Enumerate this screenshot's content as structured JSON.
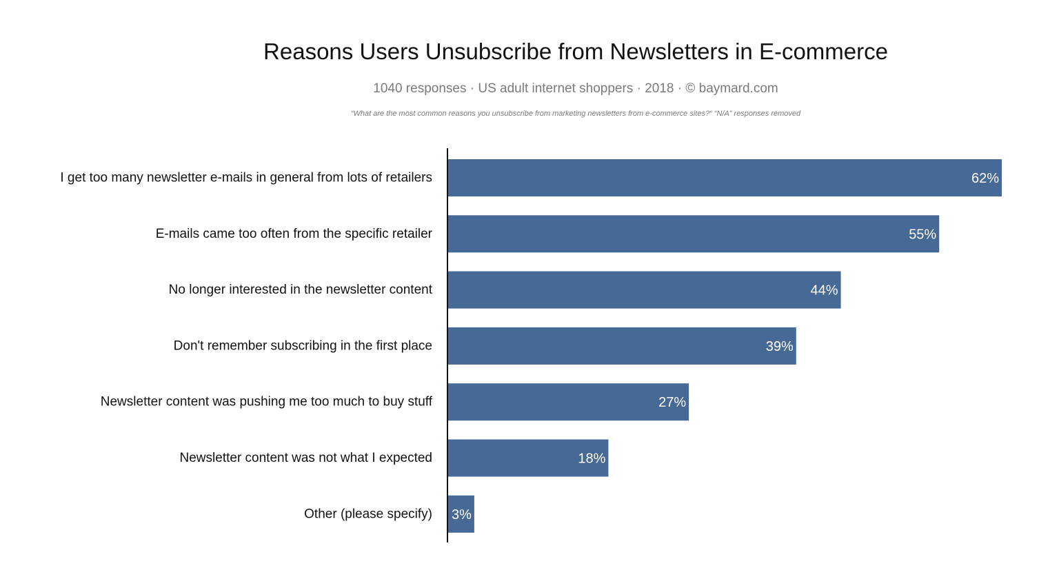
{
  "chart_data": {
    "type": "bar",
    "orientation": "horizontal",
    "title": "Reasons Users Unsubscribe from Newsletters in E-commerce",
    "subtitle": "1040 responses  ·  US adult internet shoppers ·  2018  ·  ©  baymard.com",
    "note": "“What are the most common reasons you unsubscribe from marketing newsletters from e-commerce sites?“ “N/A” responses removed",
    "categories": [
      "I get too many newsletter e-mails in general from lots of retailers",
      "E-mails came too often from the specific retailer",
      "No longer interested in the newsletter content",
      "Don't remember subscribing in the first place",
      "Newsletter content was pushing me too much to buy stuff",
      "Newsletter content was not what I expected",
      "Other (please specify)"
    ],
    "values": [
      62,
      55,
      44,
      39,
      27,
      18,
      3
    ],
    "value_labels": [
      "62%",
      "55%",
      "44%",
      "39%",
      "27%",
      "18%",
      "3%"
    ],
    "xlim": [
      0,
      62
    ],
    "grid": false,
    "legend": "none",
    "bar_color": "#476996",
    "label_color": "#ffffff"
  }
}
